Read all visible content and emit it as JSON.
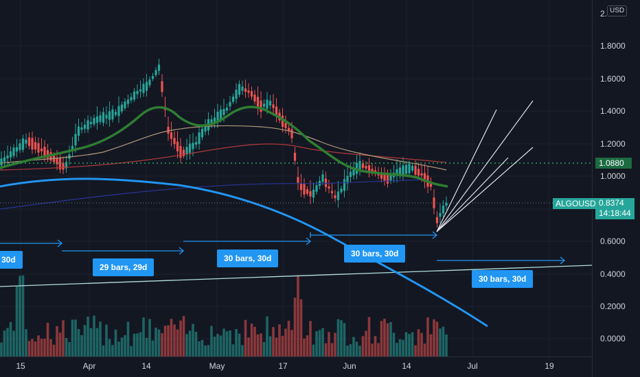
{
  "symbol": "ALGOUSD",
  "currency": "USD",
  "last_price": "0.8374",
  "countdown": "14:18:44",
  "level_price": "1.0880",
  "price_axis": [
    "2.",
    "1.8000",
    "1.6000",
    "1.4000",
    "1.2000",
    "1.0000",
    "0.6000",
    "0.4000",
    "0.2000",
    "0.0000"
  ],
  "time_axis": [
    "15",
    "Apr",
    "14",
    "May",
    "17",
    "Jun",
    "14",
    "Jul",
    "19"
  ],
  "range_labels": [
    "30d",
    "29 bars, 29d",
    "30 bars, 30d",
    "30 bars, 30d",
    "30 bars, 30d"
  ],
  "colors": {
    "background": "#131722",
    "up": "#26a69a",
    "down": "#ef5350",
    "accent": "#2196f3",
    "ma_green": "#2e7d32",
    "level": "#1c6b41"
  },
  "icons": [
    "fan-lines",
    "arc-curve",
    "trend-line",
    "date-range-arrow"
  ]
}
